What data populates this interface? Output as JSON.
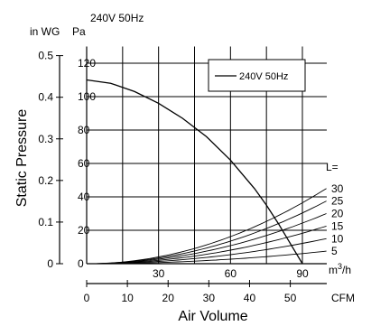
{
  "chart_data": {
    "type": "line",
    "title": "240V 50Hz",
    "ylabel": "Static Pressure",
    "xlabel": "Air Volume",
    "primary_x_axis": {
      "unit": "m3/h",
      "unit_base": "m",
      "unit_sup": "3",
      "unit_tail": "/h",
      "range": [
        0,
        100
      ],
      "ticks": [
        30,
        60,
        90
      ],
      "tick_labels": [
        "30",
        "60",
        "90"
      ],
      "origin_label": "0"
    },
    "secondary_x_axis": {
      "unit": "CFM",
      "ticks": [
        0,
        10,
        20,
        30,
        40,
        50
      ],
      "tick_labels": [
        "0",
        "10",
        "20",
        "30",
        "40",
        "50"
      ]
    },
    "primary_y_axis": {
      "unit": "Pa",
      "range": [
        0,
        130
      ],
      "ticks": [
        20,
        40,
        60,
        80,
        100,
        120
      ],
      "tick_labels": [
        "20",
        "40",
        "60",
        "80",
        "100",
        "120"
      ],
      "origin_label": "0"
    },
    "secondary_y_axis": {
      "unit": "in WG",
      "ticks": [
        0,
        0.1,
        0.2,
        0.3,
        0.4,
        0.5
      ],
      "tick_labels": [
        "0",
        "0.1",
        "0.2",
        "0.3",
        "0.4",
        "0.5"
      ]
    },
    "grid": true,
    "legend": {
      "position": "top-right",
      "entries": [
        "240V 50Hz"
      ]
    },
    "series": [
      {
        "name": "240V 50Hz",
        "x": [
          0,
          10,
          20,
          30,
          40,
          50,
          60,
          70,
          75,
          80,
          85,
          90
        ],
        "y": [
          110,
          108,
          103,
          96,
          87,
          76,
          62,
          45,
          35,
          24,
          12,
          0
        ]
      }
    ],
    "duct_curves": {
      "label": "L=",
      "lengths": [
        "30",
        "25",
        "20",
        "15",
        "10",
        "5"
      ],
      "k": [
        0.0045,
        0.00375,
        0.003,
        0.00225,
        0.0015,
        0.00075
      ]
    }
  }
}
